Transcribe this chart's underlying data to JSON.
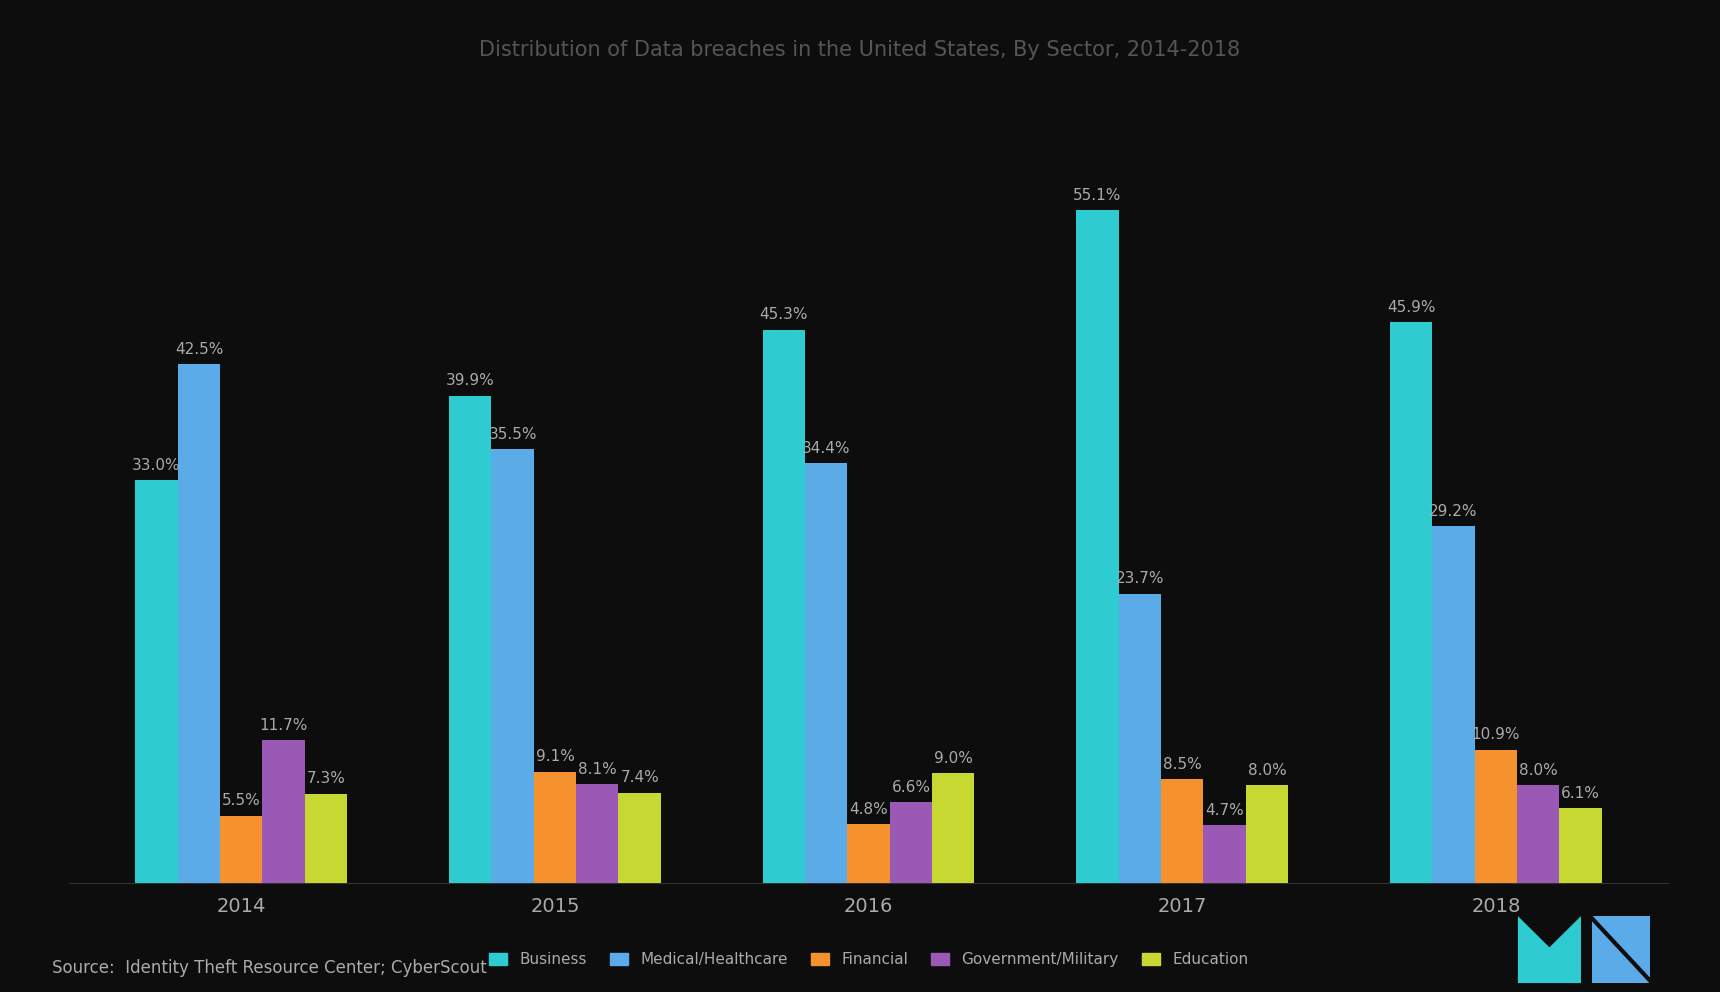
{
  "title": "Distribution of Data breaches in the United States, By Sector, 2014-2018",
  "years": [
    2014,
    2015,
    2016,
    2017,
    2018
  ],
  "categories": [
    "Business",
    "Medical/Healthcare",
    "Financial",
    "Government/Military",
    "Education"
  ],
  "colors": [
    "#2eccd1",
    "#5aabe8",
    "#f5922e",
    "#9b59b6",
    "#c8d832"
  ],
  "data": {
    "Business": [
      33.0,
      39.9,
      45.3,
      55.1,
      45.9
    ],
    "Medical/Healthcare": [
      42.5,
      35.5,
      34.4,
      23.7,
      29.2
    ],
    "Financial": [
      5.5,
      9.1,
      4.8,
      8.5,
      10.9
    ],
    "Government/Military": [
      11.7,
      8.1,
      6.6,
      4.7,
      8.0
    ],
    "Education": [
      7.3,
      7.4,
      9.0,
      8.0,
      6.1
    ]
  },
  "source_text": "Source:  Identity Theft Resource Center; CyberScout",
  "background_color": "#0d0d0d",
  "text_color": "#aaaaaa",
  "title_color": "#555555",
  "title_fontsize": 15,
  "label_fontsize": 11,
  "legend_fontsize": 11,
  "source_fontsize": 12,
  "bar_width": 0.135,
  "ylim": [
    0,
    65
  ],
  "logo_m_color": "#2eccd1",
  "logo_n_color": "#5aabe8"
}
